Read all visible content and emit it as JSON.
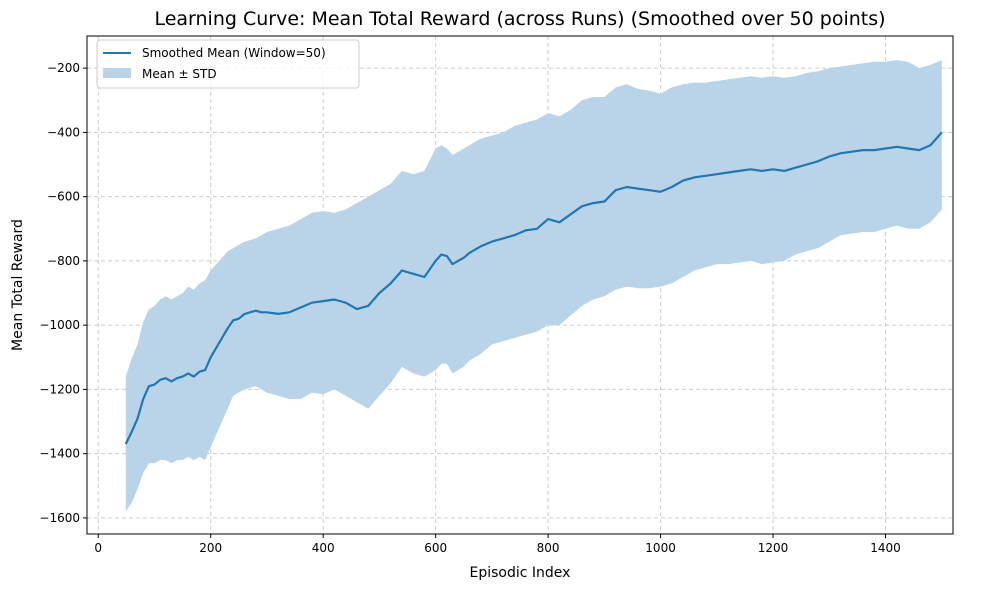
{
  "chart_data": {
    "type": "line",
    "title": "Learning Curve: Mean Total Reward (across Runs) (Smoothed over 50 points)",
    "xlabel": "Episodic Index",
    "ylabel": "Mean Total Reward",
    "xlim": [
      -20,
      1520
    ],
    "ylim": [
      -1650,
      -100
    ],
    "xticks": [
      0,
      200,
      400,
      600,
      800,
      1000,
      1200,
      1400
    ],
    "yticks": [
      -1600,
      -1400,
      -1200,
      -1000,
      -800,
      -600,
      -400,
      -200
    ],
    "grid": true,
    "legend_position": "top-left",
    "series": [
      {
        "name": "Smoothed Mean (Window=50)",
        "kind": "line",
        "color": "#1f77b4",
        "x": [
          49,
          60,
          70,
          80,
          90,
          100,
          110,
          120,
          130,
          140,
          150,
          160,
          170,
          180,
          190,
          200,
          210,
          220,
          230,
          240,
          250,
          260,
          270,
          280,
          290,
          300,
          320,
          340,
          360,
          380,
          400,
          420,
          440,
          460,
          480,
          500,
          520,
          540,
          560,
          580,
          600,
          610,
          620,
          630,
          640,
          650,
          660,
          680,
          700,
          720,
          740,
          760,
          780,
          800,
          820,
          840,
          860,
          880,
          900,
          920,
          940,
          960,
          980,
          1000,
          1020,
          1040,
          1060,
          1080,
          1100,
          1120,
          1140,
          1160,
          1180,
          1200,
          1220,
          1240,
          1260,
          1280,
          1300,
          1320,
          1340,
          1360,
          1380,
          1400,
          1420,
          1440,
          1460,
          1480,
          1500
        ],
        "y": [
          -1370,
          -1330,
          -1290,
          -1230,
          -1190,
          -1185,
          -1170,
          -1165,
          -1175,
          -1165,
          -1160,
          -1150,
          -1160,
          -1145,
          -1140,
          -1100,
          -1070,
          -1040,
          -1010,
          -985,
          -980,
          -965,
          -960,
          -955,
          -960,
          -960,
          -965,
          -960,
          -945,
          -930,
          -925,
          -920,
          -930,
          -950,
          -940,
          -900,
          -870,
          -830,
          -840,
          -850,
          -800,
          -780,
          -785,
          -810,
          -800,
          -790,
          -775,
          -755,
          -740,
          -730,
          -720,
          -705,
          -700,
          -670,
          -680,
          -655,
          -630,
          -620,
          -615,
          -580,
          -570,
          -575,
          -580,
          -585,
          -570,
          -550,
          -540,
          -535,
          -530,
          -525,
          -520,
          -515,
          -520,
          -515,
          -520,
          -510,
          -500,
          -490,
          -475,
          -465,
          -460,
          -455,
          -455,
          -450,
          -445,
          -450,
          -455,
          -440,
          -400
        ]
      },
      {
        "name": "Mean ± STD",
        "kind": "band",
        "color": "#b9d3e8",
        "x": [
          49,
          60,
          70,
          80,
          90,
          100,
          110,
          120,
          130,
          140,
          150,
          160,
          170,
          180,
          190,
          200,
          210,
          220,
          230,
          240,
          250,
          260,
          270,
          280,
          290,
          300,
          320,
          340,
          360,
          380,
          400,
          420,
          440,
          460,
          480,
          500,
          520,
          540,
          560,
          580,
          600,
          610,
          620,
          630,
          640,
          650,
          660,
          680,
          700,
          720,
          740,
          760,
          780,
          800,
          820,
          840,
          860,
          880,
          900,
          920,
          940,
          960,
          980,
          1000,
          1020,
          1040,
          1060,
          1080,
          1100,
          1120,
          1140,
          1160,
          1180,
          1200,
          1220,
          1240,
          1260,
          1280,
          1300,
          1320,
          1340,
          1360,
          1380,
          1400,
          1420,
          1440,
          1460,
          1480,
          1500
        ],
        "upper": [
          -1160,
          -1100,
          -1060,
          -990,
          -950,
          -940,
          -920,
          -910,
          -920,
          -910,
          -900,
          -880,
          -890,
          -870,
          -860,
          -830,
          -810,
          -790,
          -770,
          -760,
          -750,
          -740,
          -735,
          -730,
          -720,
          -710,
          -700,
          -690,
          -670,
          -650,
          -645,
          -650,
          -640,
          -620,
          -600,
          -580,
          -560,
          -520,
          -530,
          -520,
          -450,
          -440,
          -450,
          -470,
          -460,
          -450,
          -440,
          -420,
          -410,
          -400,
          -380,
          -370,
          -360,
          -340,
          -350,
          -330,
          -300,
          -290,
          -290,
          -260,
          -250,
          -265,
          -270,
          -280,
          -260,
          -250,
          -245,
          -245,
          -240,
          -235,
          -230,
          -225,
          -230,
          -225,
          -230,
          -225,
          -215,
          -210,
          -200,
          -195,
          -190,
          -185,
          -180,
          -180,
          -175,
          -180,
          -200,
          -190,
          -175
        ],
        "lower": [
          -1580,
          -1550,
          -1510,
          -1460,
          -1430,
          -1430,
          -1420,
          -1420,
          -1430,
          -1420,
          -1420,
          -1410,
          -1420,
          -1410,
          -1420,
          -1380,
          -1340,
          -1300,
          -1260,
          -1220,
          -1210,
          -1200,
          -1195,
          -1190,
          -1200,
          -1210,
          -1220,
          -1230,
          -1230,
          -1210,
          -1215,
          -1200,
          -1220,
          -1240,
          -1260,
          -1220,
          -1180,
          -1130,
          -1150,
          -1160,
          -1140,
          -1120,
          -1120,
          -1150,
          -1140,
          -1130,
          -1110,
          -1090,
          -1060,
          -1050,
          -1040,
          -1030,
          -1020,
          -1000,
          -1000,
          -970,
          -940,
          -920,
          -910,
          -890,
          -880,
          -885,
          -885,
          -880,
          -870,
          -850,
          -830,
          -820,
          -810,
          -810,
          -805,
          -800,
          -810,
          -805,
          -800,
          -780,
          -770,
          -760,
          -740,
          -720,
          -715,
          -710,
          -710,
          -700,
          -690,
          -700,
          -700,
          -680,
          -640
        ]
      }
    ]
  }
}
